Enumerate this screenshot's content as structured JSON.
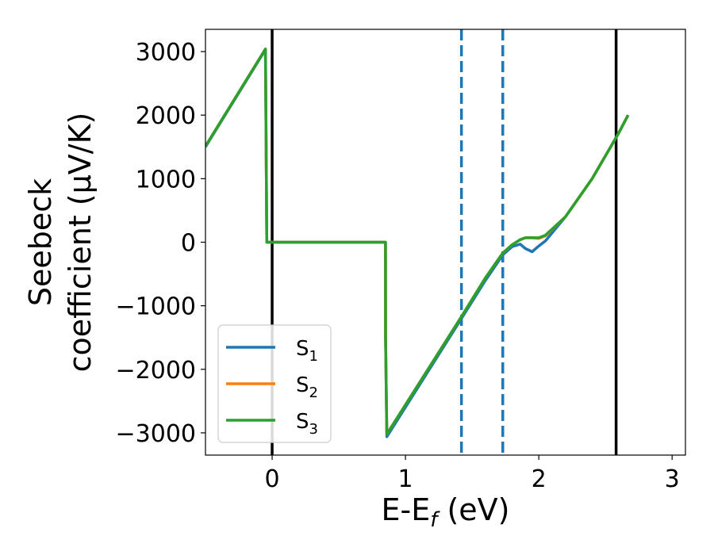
{
  "chart_data": {
    "type": "line",
    "xlabel": {
      "main": "E-E",
      "sub": "f",
      "unit": " (eV)"
    },
    "ylabel": {
      "line1": "Seebeck",
      "line2": "coefficient  (μV/K)"
    },
    "xlim": [
      -0.5,
      3.1
    ],
    "ylim": [
      -3350,
      3350
    ],
    "xticks": [
      0,
      1,
      2,
      3
    ],
    "xtick_labels": [
      "0",
      "1",
      "2",
      "3"
    ],
    "yticks": [
      -3000,
      -2000,
      -1000,
      0,
      1000,
      2000,
      3000
    ],
    "ytick_labels": [
      "−3000",
      "−2000",
      "−1000",
      "0",
      "1000",
      "2000",
      "3000"
    ],
    "grid": false,
    "legend_position": "lower-left",
    "vertical_lines": [
      {
        "x": 0.0,
        "style": "solid",
        "color": "#000000"
      },
      {
        "x": 2.58,
        "style": "solid",
        "color": "#000000"
      },
      {
        "x": 1.42,
        "style": "dashed",
        "color": "#1f77b4"
      },
      {
        "x": 1.73,
        "style": "dashed",
        "color": "#1f77b4"
      }
    ],
    "series": [
      {
        "name": "S",
        "sub": "1",
        "color": "#1f77b4",
        "x": [
          -0.5,
          -0.05,
          -0.04,
          0.85,
          0.851,
          0.86,
          1.42,
          1.6,
          1.73,
          1.8,
          1.86,
          1.9,
          1.95,
          2.0,
          2.05,
          2.2,
          2.4,
          2.6,
          2.67
        ],
        "y": [
          1500,
          3030,
          0,
          0,
          -1500,
          -3060,
          -1200,
          -600,
          -200,
          -70,
          -30,
          -100,
          -150,
          -60,
          20,
          400,
          1000,
          1720,
          2000
        ]
      },
      {
        "name": "S",
        "sub": "2",
        "color": "#ff7f0e",
        "x": [
          -0.5,
          -0.05,
          -0.04,
          0.85,
          0.851,
          0.86,
          1.42,
          1.6,
          1.73,
          1.8,
          1.86,
          1.9,
          1.95,
          2.0,
          2.05,
          2.2,
          2.4,
          2.6,
          2.67
        ],
        "y": [
          1510,
          3040,
          0,
          0,
          -1500,
          -3020,
          -1170,
          -560,
          -170,
          -40,
          40,
          70,
          70,
          60,
          100,
          400,
          1000,
          1720,
          2000
        ]
      },
      {
        "name": "S",
        "sub": "3",
        "color": "#2ca02c",
        "x": [
          -0.5,
          -0.05,
          -0.04,
          0.85,
          0.851,
          0.86,
          1.42,
          1.6,
          1.73,
          1.8,
          1.86,
          1.9,
          1.95,
          2.0,
          2.05,
          2.2,
          2.4,
          2.6,
          2.67
        ],
        "y": [
          1510,
          3040,
          0,
          0,
          -1500,
          -3020,
          -1170,
          -560,
          -170,
          -40,
          40,
          70,
          70,
          70,
          110,
          400,
          1000,
          1720,
          2000
        ]
      }
    ]
  }
}
